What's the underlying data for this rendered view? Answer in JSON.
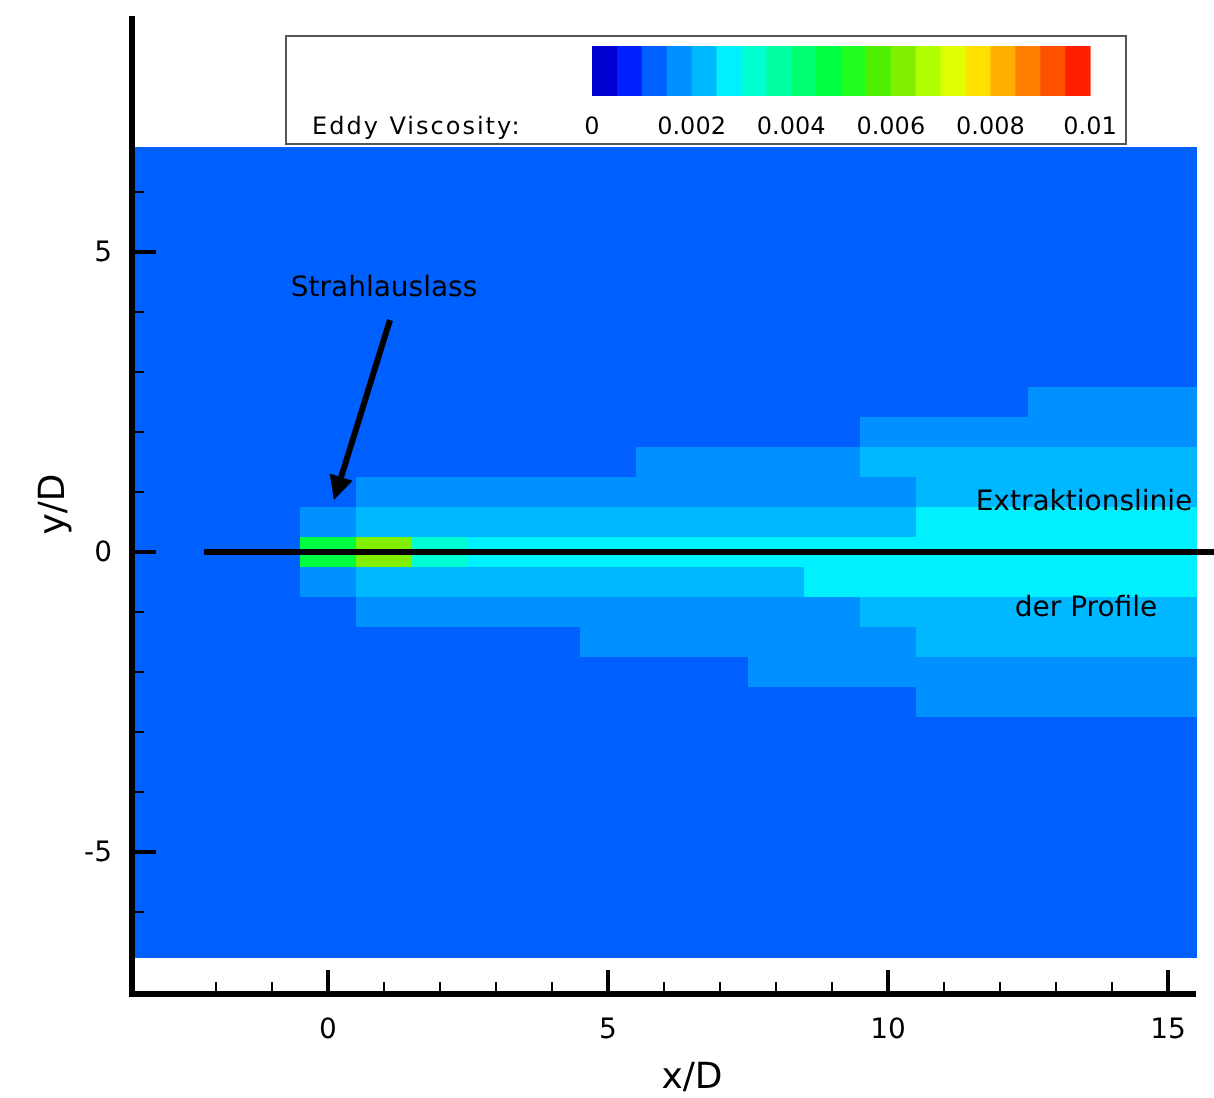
{
  "chart_data": {
    "type": "heatmap",
    "xlabel": "x/D",
    "ylabel": "y/D",
    "clabel": "Eddy Viscosity:",
    "categories": [
      null,
      null,
      null,
      "0",
      null,
      null,
      null,
      null,
      "5",
      null,
      null,
      null,
      null,
      "10",
      null,
      null,
      null,
      null,
      "15"
    ],
    "y_categories": [
      null,
      null,
      null,
      "5",
      null,
      null,
      null,
      null,
      null,
      null,
      null,
      null,
      null,
      "0",
      null,
      null,
      null,
      null,
      null,
      null,
      null,
      null,
      null,
      "-5",
      null,
      null,
      null
    ],
    "clim": [
      0,
      0.01
    ],
    "cticks": [
      0,
      0.002,
      0.004,
      0.006,
      0.008,
      0.01
    ],
    "colors": [
      "#0000d0",
      "#0020ff",
      "#0060ff",
      "#0090ff",
      "#00b8ff",
      "#00f0ff",
      "#00ffd0",
      "#00ffa0",
      "#00ff70",
      "#00ff40",
      "#20ff20",
      "#50f000",
      "#80f000",
      "#b0ff00",
      "#e0ff00",
      "#ffe000",
      "#ffb000",
      "#ff8000",
      "#ff5000",
      "#ff2000"
    ],
    "cells": [
      [
        0.0012,
        0.0012,
        0.0012,
        0.0012,
        0.0012,
        0.0012,
        0.0012,
        0.0012,
        0.0012,
        0.0012,
        0.0012,
        0.0012,
        0.0012,
        0.0012,
        0.0012,
        0.0012,
        0.0012,
        0.0012,
        0.0012
      ],
      [
        0.0012,
        0.0012,
        0.0012,
        0.0012,
        0.0012,
        0.0012,
        0.0012,
        0.0012,
        0.0012,
        0.0012,
        0.0012,
        0.0012,
        0.0012,
        0.0012,
        0.0012,
        0.0012,
        0.0012,
        0.0012,
        0.0012
      ],
      [
        0.0012,
        0.0012,
        0.0012,
        0.0012,
        0.0012,
        0.0012,
        0.0012,
        0.0012,
        0.0012,
        0.0012,
        0.0012,
        0.0012,
        0.0012,
        0.0012,
        0.0012,
        0.0012,
        0.0012,
        0.0012,
        0.0012
      ],
      [
        0.0012,
        0.0012,
        0.0012,
        0.0012,
        0.0012,
        0.0012,
        0.0012,
        0.0012,
        0.0012,
        0.0012,
        0.0012,
        0.0012,
        0.0012,
        0.0012,
        0.0012,
        0.0012,
        0.0012,
        0.0012,
        0.0012
      ],
      [
        0.0012,
        0.0012,
        0.0012,
        0.0012,
        0.0012,
        0.0012,
        0.0012,
        0.0012,
        0.0012,
        0.0012,
        0.0012,
        0.0012,
        0.0012,
        0.0012,
        0.0012,
        0.0012,
        0.0012,
        0.0012,
        0.0012
      ],
      [
        0.0012,
        0.0012,
        0.0012,
        0.0012,
        0.0012,
        0.0012,
        0.0012,
        0.0012,
        0.0012,
        0.0012,
        0.0012,
        0.0012,
        0.0012,
        0.0012,
        0.0012,
        0.0012,
        0.0012,
        0.0012,
        0.0012
      ],
      [
        0.0012,
        0.0012,
        0.0012,
        0.0012,
        0.0012,
        0.0012,
        0.0012,
        0.0012,
        0.0012,
        0.0012,
        0.0012,
        0.0012,
        0.0012,
        0.0012,
        0.0012,
        0.0012,
        0.0012,
        0.0012,
        0.0012
      ],
      [
        0.0012,
        0.0012,
        0.0012,
        0.0012,
        0.0012,
        0.0012,
        0.0012,
        0.0012,
        0.0012,
        0.0012,
        0.0012,
        0.0012,
        0.0012,
        0.0012,
        0.0012,
        0.0012,
        0.0012,
        0.0012,
        0.0012
      ],
      [
        0.0012,
        0.0012,
        0.0012,
        0.0012,
        0.0012,
        0.0012,
        0.0012,
        0.0012,
        0.0012,
        0.0012,
        0.0012,
        0.0012,
        0.0012,
        0.0012,
        0.0012,
        0.0012,
        0.0017,
        0.0017,
        0.0017
      ],
      [
        0.0012,
        0.0012,
        0.0012,
        0.0012,
        0.0012,
        0.0012,
        0.0012,
        0.0012,
        0.0012,
        0.0012,
        0.0012,
        0.0012,
        0.0012,
        0.0017,
        0.0017,
        0.0017,
        0.0017,
        0.0017,
        0.0017
      ],
      [
        0.0012,
        0.0012,
        0.0012,
        0.0012,
        0.0012,
        0.0012,
        0.0012,
        0.0012,
        0.0012,
        0.0017,
        0.0017,
        0.0017,
        0.0017,
        0.0022,
        0.0022,
        0.0022,
        0.0022,
        0.0022,
        0.0022
      ],
      [
        0.0012,
        0.0012,
        0.0012,
        0.0012,
        0.0017,
        0.0017,
        0.0017,
        0.0017,
        0.0017,
        0.0017,
        0.0017,
        0.0017,
        0.0017,
        0.0017,
        0.0022,
        0.0022,
        0.0022,
        0.0022,
        0.0022
      ],
      [
        0.0012,
        0.0012,
        0.0012,
        0.0017,
        0.0022,
        0.0022,
        0.0022,
        0.0022,
        0.0022,
        0.0022,
        0.0022,
        0.0022,
        0.0022,
        0.0022,
        0.0027,
        0.0027,
        0.0027,
        0.0027,
        0.0027
      ],
      [
        0.0012,
        0.0012,
        0.0012,
        0.0045,
        0.0062,
        0.0032,
        0.0027,
        0.0027,
        0.0027,
        0.0027,
        0.0027,
        0.0027,
        0.0027,
        0.0027,
        0.0027,
        0.0027,
        0.0027,
        0.0027,
        0.0027
      ],
      [
        0.0012,
        0.0012,
        0.0012,
        0.0017,
        0.0022,
        0.0022,
        0.0022,
        0.0022,
        0.0022,
        0.0022,
        0.0022,
        0.0022,
        0.0027,
        0.0027,
        0.0027,
        0.0027,
        0.0027,
        0.0027,
        0.0027
      ],
      [
        0.0012,
        0.0012,
        0.0012,
        0.0012,
        0.0017,
        0.0017,
        0.0017,
        0.0017,
        0.0017,
        0.0017,
        0.0017,
        0.0017,
        0.0017,
        0.0022,
        0.0022,
        0.0022,
        0.0022,
        0.0022,
        0.0022
      ],
      [
        0.0012,
        0.0012,
        0.0012,
        0.0012,
        0.0012,
        0.0012,
        0.0012,
        0.0012,
        0.0017,
        0.0017,
        0.0017,
        0.0017,
        0.0017,
        0.0017,
        0.0022,
        0.0022,
        0.0022,
        0.0022,
        0.0022
      ],
      [
        0.0012,
        0.0012,
        0.0012,
        0.0012,
        0.0012,
        0.0012,
        0.0012,
        0.0012,
        0.0012,
        0.0012,
        0.0012,
        0.0017,
        0.0017,
        0.0017,
        0.0017,
        0.0017,
        0.0017,
        0.0017,
        0.0017
      ],
      [
        0.0012,
        0.0012,
        0.0012,
        0.0012,
        0.0012,
        0.0012,
        0.0012,
        0.0012,
        0.0012,
        0.0012,
        0.0012,
        0.0012,
        0.0012,
        0.0012,
        0.0017,
        0.0017,
        0.0017,
        0.0017,
        0.0017
      ],
      [
        0.0012,
        0.0012,
        0.0012,
        0.0012,
        0.0012,
        0.0012,
        0.0012,
        0.0012,
        0.0012,
        0.0012,
        0.0012,
        0.0012,
        0.0012,
        0.0012,
        0.0012,
        0.0012,
        0.0012,
        0.0012,
        0.0012
      ],
      [
        0.0012,
        0.0012,
        0.0012,
        0.0012,
        0.0012,
        0.0012,
        0.0012,
        0.0012,
        0.0012,
        0.0012,
        0.0012,
        0.0012,
        0.0012,
        0.0012,
        0.0012,
        0.0012,
        0.0012,
        0.0012,
        0.0012
      ],
      [
        0.0012,
        0.0012,
        0.0012,
        0.0012,
        0.0012,
        0.0012,
        0.0012,
        0.0012,
        0.0012,
        0.0012,
        0.0012,
        0.0012,
        0.0012,
        0.0012,
        0.0012,
        0.0012,
        0.0012,
        0.0012,
        0.0012
      ],
      [
        0.0012,
        0.0012,
        0.0012,
        0.0012,
        0.0012,
        0.0012,
        0.0012,
        0.0012,
        0.0012,
        0.0012,
        0.0012,
        0.0012,
        0.0012,
        0.0012,
        0.0012,
        0.0012,
        0.0012,
        0.0012,
        0.0012
      ],
      [
        0.0012,
        0.0012,
        0.0012,
        0.0012,
        0.0012,
        0.0012,
        0.0012,
        0.0012,
        0.0012,
        0.0012,
        0.0012,
        0.0012,
        0.0012,
        0.0012,
        0.0012,
        0.0012,
        0.0012,
        0.0012,
        0.0012
      ],
      [
        0.0012,
        0.0012,
        0.0012,
        0.0012,
        0.0012,
        0.0012,
        0.0012,
        0.0012,
        0.0012,
        0.0012,
        0.0012,
        0.0012,
        0.0012,
        0.0012,
        0.0012,
        0.0012,
        0.0012,
        0.0012,
        0.0012
      ],
      [
        0.0012,
        0.0012,
        0.0012,
        0.0012,
        0.0012,
        0.0012,
        0.0012,
        0.0012,
        0.0012,
        0.0012,
        0.0012,
        0.0012,
        0.0012,
        0.0012,
        0.0012,
        0.0012,
        0.0012,
        0.0012,
        0.0012
      ],
      [
        0.0012,
        0.0012,
        0.0012,
        0.0012,
        0.0012,
        0.0012,
        0.0012,
        0.0012,
        0.0012,
        0.0012,
        0.0012,
        0.0012,
        0.0012,
        0.0012,
        0.0012,
        0.0012,
        0.0012,
        0.0012,
        0.0012
      ]
    ],
    "ref_lines": [
      {
        "axis": "y",
        "value": "0",
        "label": "Extraktionslinie der Profile",
        "color": "#000000"
      }
    ],
    "annotations": [
      "Strahlauslass"
    ]
  }
}
